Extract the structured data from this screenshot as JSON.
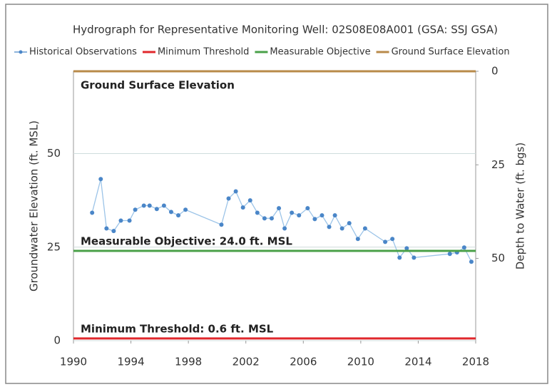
{
  "chart_data": {
    "type": "line",
    "title": "Hydrograph for Representative Monitoring Well: 02S08E08A001 (GSA: SSJ GSA)",
    "ylabel": "Groundwater Elevation (ft. MSL)",
    "y2label": "Depth to Water (ft. bgs)",
    "xlim": [
      1990,
      2018
    ],
    "xticks": [
      1990,
      1994,
      1998,
      2002,
      2006,
      2010,
      2014,
      2018
    ],
    "ylim": [
      0,
      72
    ],
    "yticks": [
      0,
      25,
      50
    ],
    "y2lim": [
      72,
      0
    ],
    "y2ticks": [
      0,
      25,
      50
    ],
    "grid": true,
    "legend": "top",
    "series": [
      {
        "name": "Historical Observations",
        "color": "#4a86c8",
        "x": [
          1991.3,
          1991.9,
          1992.3,
          1992.8,
          1993.3,
          1993.9,
          1994.3,
          1994.9,
          1995.3,
          1995.8,
          1996.3,
          1996.8,
          1997.3,
          1997.8,
          2000.3,
          2000.8,
          2001.3,
          2001.8,
          2002.3,
          2002.8,
          2003.3,
          2003.8,
          2004.3,
          2004.7,
          2005.2,
          2005.7,
          2006.3,
          2006.8,
          2007.3,
          2007.8,
          2008.2,
          2008.7,
          2009.2,
          2009.8,
          2010.3,
          2011.7,
          2012.2,
          2012.7,
          2013.2,
          2013.7,
          2016.2,
          2016.7,
          2017.2,
          2017.7
        ],
        "values": [
          34.2,
          43.2,
          30.0,
          29.3,
          32.1,
          32.1,
          35.0,
          36.1,
          36.1,
          35.2,
          36.1,
          34.4,
          33.5,
          35.0,
          31.0,
          38.0,
          39.9,
          35.6,
          37.5,
          34.2,
          32.7,
          32.7,
          35.4,
          30.0,
          34.2,
          33.5,
          35.4,
          32.5,
          33.5,
          30.4,
          33.5,
          30.0,
          31.4,
          27.2,
          30.0,
          26.4,
          27.2,
          22.2,
          24.7,
          22.2,
          23.2,
          23.6,
          24.9,
          21.1
        ]
      },
      {
        "name": "Minimum Threshold",
        "color": "#e0282c",
        "x": [
          1990,
          2018
        ],
        "values": [
          0.6,
          0.6
        ]
      },
      {
        "name": "Measurable Objective",
        "color": "#4aa048",
        "x": [
          1990,
          2018
        ],
        "values": [
          24.0,
          24.0
        ]
      },
      {
        "name": "Ground Surface Elevation",
        "color": "#b88a4a",
        "x": [
          1990,
          2018
        ],
        "values": [
          72,
          72
        ]
      }
    ],
    "annotations": [
      "Minimum Threshold: 0.6 ft. MSL",
      "Measurable Objective: 24.0 ft. MSL",
      "Ground Surface Elevation"
    ]
  }
}
